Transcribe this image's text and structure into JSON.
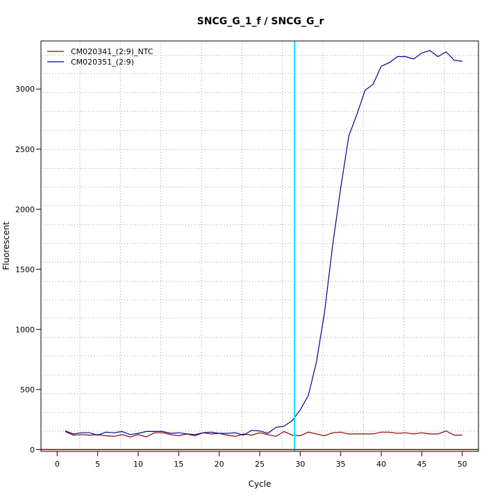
{
  "chart_data": {
    "type": "line",
    "title": "SNCG_G_1_f / SNCG_G_r",
    "xlabel": "Cycle",
    "ylabel": "Fluorescent",
    "xlim": [
      -2,
      52
    ],
    "ylim": [
      -15,
      3400
    ],
    "xticks": [
      0,
      5,
      10,
      15,
      20,
      25,
      30,
      35,
      40,
      45,
      50
    ],
    "yticks": [
      0,
      500,
      1000,
      1500,
      2000,
      2500,
      3000
    ],
    "xgrid": [
      2.8,
      7.8,
      12.8,
      17.8,
      22.8,
      27.8,
      32.8,
      37.8,
      42.8,
      47.8
    ],
    "ygrid": [
      155,
      310,
      465,
      620,
      780,
      935,
      1095,
      1245,
      1400,
      1560,
      1715,
      1870,
      2030,
      2185,
      2340,
      2495,
      2655,
      2815,
      2970,
      3130,
      3280
    ],
    "grid": true,
    "legend_position": "top-left",
    "threshold": {
      "x": 29.3,
      "color": "#00e5ff"
    },
    "baseline": {
      "y": 0,
      "color": "#8b0000"
    },
    "series": [
      {
        "name": "CM020341_(2:9)_NTC",
        "color": "#8b0000",
        "x": [
          1,
          2,
          3,
          4,
          5,
          6,
          7,
          8,
          9,
          10,
          11,
          12,
          13,
          14,
          15,
          16,
          17,
          18,
          19,
          20,
          21,
          22,
          23,
          24,
          25,
          26,
          27,
          28,
          29,
          30,
          31,
          32,
          33,
          34,
          35,
          36,
          37,
          38,
          39,
          40,
          41,
          42,
          43,
          44,
          45,
          46,
          47,
          48,
          49,
          50
        ],
        "values": [
          150,
          120,
          125,
          120,
          125,
          115,
          110,
          125,
          105,
          125,
          105,
          140,
          140,
          125,
          115,
          130,
          115,
          140,
          130,
          135,
          120,
          110,
          130,
          120,
          140,
          125,
          110,
          150,
          120,
          115,
          145,
          130,
          115,
          140,
          145,
          130,
          130,
          130,
          130,
          145,
          145,
          135,
          140,
          130,
          140,
          130,
          130,
          155,
          120,
          120
        ]
      },
      {
        "name": "CM020351_(2:9)",
        "color": "#00008b",
        "x": [
          1,
          2,
          3,
          4,
          5,
          6,
          7,
          8,
          9,
          10,
          11,
          12,
          13,
          14,
          15,
          16,
          17,
          18,
          19,
          20,
          21,
          22,
          23,
          24,
          25,
          26,
          27,
          28,
          29,
          30,
          31,
          32,
          33,
          34,
          35,
          36,
          37,
          38,
          39,
          40,
          41,
          42,
          43,
          44,
          45,
          46,
          47,
          48,
          49,
          50
        ],
        "values": [
          155,
          130,
          140,
          140,
          120,
          145,
          140,
          150,
          125,
          135,
          150,
          150,
          150,
          135,
          140,
          130,
          125,
          140,
          145,
          135,
          135,
          140,
          120,
          160,
          155,
          135,
          185,
          195,
          240,
          330,
          450,
          730,
          1140,
          1700,
          2180,
          2610,
          2790,
          2990,
          3040,
          3190,
          3220,
          3270,
          3270,
          3250,
          3300,
          3320,
          3270,
          3310,
          3240,
          3230
        ]
      }
    ]
  }
}
